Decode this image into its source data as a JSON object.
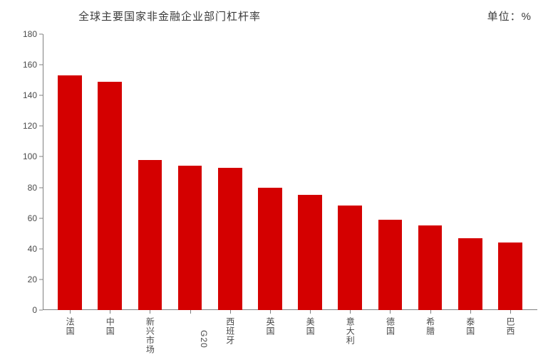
{
  "chart": {
    "type": "bar",
    "title": "全球主要国家非金融企业部门杠杆率",
    "unit_label": "单位：%",
    "title_fontsize": 15,
    "title_color": "#3a3a3a",
    "background_color": "#ffffff",
    "axis_color": "#808080",
    "label_color": "#4a4a4a",
    "label_fontsize": 12,
    "ylim": [
      0,
      180
    ],
    "ytick_step": 20,
    "yticks": [
      0,
      20,
      40,
      60,
      80,
      100,
      120,
      140,
      160,
      180
    ],
    "bar_color": "#d40000",
    "bar_width": 0.6,
    "categories": [
      "法国",
      "中国",
      "新兴市场",
      "G20",
      "西班牙",
      "英国",
      "美国",
      "意大利",
      "德国",
      "希腊",
      "泰国",
      "巴西"
    ],
    "values": [
      153,
      149,
      98,
      94,
      93,
      80,
      75,
      68,
      59,
      55,
      47,
      44
    ],
    "latin_categories": [
      "G20"
    ]
  }
}
